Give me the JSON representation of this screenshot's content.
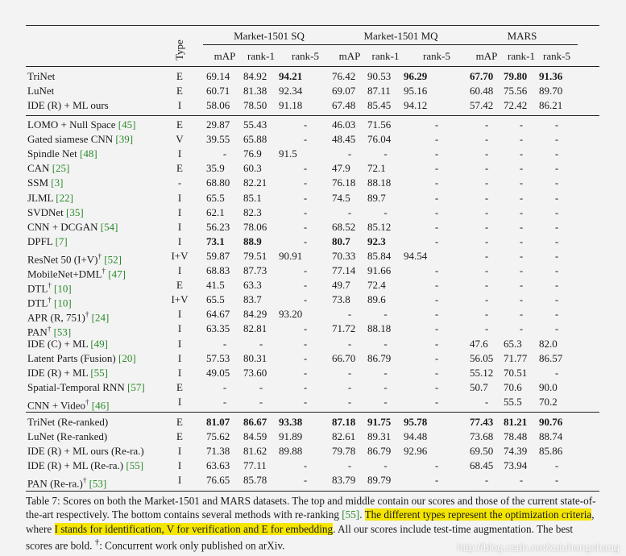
{
  "table": {
    "type_label": "Type",
    "group_headers": [
      "Market-1501 SQ",
      "Market-1501 MQ",
      "MARS"
    ],
    "sub_headers": [
      "mAP",
      "rank-1",
      "rank-5",
      "mAP",
      "rank-1",
      "rank-5",
      "mAP",
      "rank-1",
      "rank-5"
    ],
    "sections": [
      {
        "rows": [
          {
            "method": "TriNet",
            "cite": "",
            "sup": "",
            "type": "E",
            "values": [
              "69.14",
              "84.92",
              "94.21",
              "76.42",
              "90.53",
              "96.29",
              "67.70",
              "79.80",
              "91.36"
            ],
            "bold": [
              2,
              5,
              6,
              7,
              8
            ]
          },
          {
            "method": "LuNet",
            "cite": "",
            "sup": "",
            "type": "E",
            "values": [
              "60.71",
              "81.38",
              "92.34",
              "69.07",
              "87.11",
              "95.16",
              "60.48",
              "75.56",
              "89.70"
            ],
            "bold": []
          },
          {
            "method": "IDE (R) + ML ours",
            "cite": "",
            "sup": "",
            "type": "I",
            "values": [
              "58.06",
              "78.50",
              "91.18",
              "67.48",
              "85.45",
              "94.12",
              "57.42",
              "72.42",
              "86.21"
            ],
            "bold": []
          }
        ]
      },
      {
        "rows": [
          {
            "method": "LOMO + Null Space",
            "cite": "[45]",
            "sup": "",
            "type": "E",
            "values": [
              "29.87",
              "55.43",
              "-",
              "46.03",
              "71.56",
              "-",
              "-",
              "-",
              "-"
            ],
            "bold": []
          },
          {
            "method": "Gated siamese CNN",
            "cite": "[39]",
            "sup": "",
            "type": "V",
            "values": [
              "39.55",
              "65.88",
              "-",
              "48.45",
              "76.04",
              "-",
              "-",
              "-",
              "-"
            ],
            "bold": []
          },
          {
            "method": "Spindle Net",
            "cite": "[48]",
            "sup": "",
            "type": "I",
            "values": [
              "-",
              "76.9",
              "91.5",
              "-",
              "-",
              "-",
              "-",
              "-",
              "-"
            ],
            "bold": []
          },
          {
            "method": "CAN",
            "cite": "[25]",
            "sup": "",
            "type": "E",
            "values": [
              "35.9",
              "60.3",
              "-",
              "47.9",
              "72.1",
              "-",
              "-",
              "-",
              "-"
            ],
            "bold": []
          },
          {
            "method": "SSM",
            "cite": "[3]",
            "sup": "",
            "type": "-",
            "values": [
              "68.80",
              "82.21",
              "-",
              "76.18",
              "88.18",
              "-",
              "-",
              "-",
              "-"
            ],
            "bold": []
          },
          {
            "method": "JLML",
            "cite": "[22]",
            "sup": "",
            "type": "I",
            "values": [
              "65.5",
              "85.1",
              "-",
              "74.5",
              "89.7",
              "-",
              "-",
              "-",
              "-"
            ],
            "bold": []
          },
          {
            "method": "SVDNet",
            "cite": "[35]",
            "sup": "",
            "type": "I",
            "values": [
              "62.1",
              "82.3",
              "-",
              "-",
              "-",
              "-",
              "-",
              "-",
              "-"
            ],
            "bold": []
          },
          {
            "method": "CNN + DCGAN",
            "cite": "[54]",
            "sup": "",
            "type": "I",
            "values": [
              "56.23",
              "78.06",
              "-",
              "68.52",
              "85.12",
              "-",
              "-",
              "-",
              "-"
            ],
            "bold": []
          },
          {
            "method": "DPFL",
            "cite": "[7]",
            "sup": "",
            "type": "I",
            "values": [
              "73.1",
              "88.9",
              "-",
              "80.7",
              "92.3",
              "-",
              "-",
              "-",
              "-"
            ],
            "bold": [
              0,
              1,
              3,
              4
            ]
          },
          {
            "method": "ResNet 50 (I+V)",
            "cite": "[52]",
            "sup": "†",
            "type": "I+V",
            "values": [
              "59.87",
              "79.51",
              "90.91",
              "70.33",
              "85.84",
              "94.54",
              "-",
              "-",
              "-"
            ],
            "bold": []
          },
          {
            "method": "MobileNet+DML",
            "cite": "[47]",
            "sup": "†",
            "type": "I",
            "values": [
              "68.83",
              "87.73",
              "-",
              "77.14",
              "91.66",
              "-",
              "-",
              "-",
              "-"
            ],
            "bold": []
          },
          {
            "method": "DTL",
            "cite": "[10]",
            "sup": "†",
            "type": "E",
            "values": [
              "41.5",
              "63.3",
              "-",
              "49.7",
              "72.4",
              "-",
              "-",
              "-",
              "-"
            ],
            "bold": []
          },
          {
            "method": "DTL",
            "cite": "[10]",
            "sup": "†",
            "type": "I+V",
            "values": [
              "65.5",
              "83.7",
              "-",
              "73.8",
              "89.6",
              "-",
              "-",
              "-",
              "-"
            ],
            "bold": []
          },
          {
            "method": "APR (R, 751)",
            "cite": "[24]",
            "sup": "†",
            "type": "I",
            "values": [
              "64.67",
              "84.29",
              "93.20",
              "-",
              "-",
              "-",
              "-",
              "-",
              "-"
            ],
            "bold": []
          },
          {
            "method": "PAN",
            "cite": "[53]",
            "sup": "†",
            "type": "I",
            "values": [
              "63.35",
              "82.81",
              "-",
              "71.72",
              "88.18",
              "-",
              "-",
              "-",
              "-"
            ],
            "bold": []
          },
          {
            "method": "IDE (C) + ML",
            "cite": "[49]",
            "sup": "",
            "type": "I",
            "values": [
              "-",
              "-",
              "-",
              "-",
              "-",
              "-",
              "47.6",
              "65.3",
              "82.0"
            ],
            "bold": []
          },
          {
            "method": "Latent Parts (Fusion)",
            "cite": "[20]",
            "sup": "",
            "type": "I",
            "values": [
              "57.53",
              "80.31",
              "-",
              "66.70",
              "86.79",
              "-",
              "56.05",
              "71.77",
              "86.57"
            ],
            "bold": []
          },
          {
            "method": "IDE (R) + ML",
            "cite": "[55]",
            "sup": "",
            "type": "I",
            "values": [
              "49.05",
              "73.60",
              "-",
              "-",
              "-",
              "-",
              "55.12",
              "70.51",
              "-"
            ],
            "bold": []
          },
          {
            "method": "Spatial-Temporal RNN",
            "cite": "[57]",
            "sup": "",
            "type": "E",
            "values": [
              "-",
              "-",
              "-",
              "-",
              "-",
              "-",
              "50.7",
              "70.6",
              "90.0"
            ],
            "bold": []
          },
          {
            "method": "CNN + Video",
            "cite": "[46]",
            "sup": "†",
            "type": "I",
            "values": [
              "-",
              "-",
              "-",
              "-",
              "-",
              "-",
              "-",
              "55.5",
              "70.2"
            ],
            "bold": []
          }
        ]
      },
      {
        "rows": [
          {
            "method": "TriNet (Re-ranked)",
            "cite": "",
            "sup": "",
            "type": "E",
            "values": [
              "81.07",
              "86.67",
              "93.38",
              "87.18",
              "91.75",
              "95.78",
              "77.43",
              "81.21",
              "90.76"
            ],
            "bold": [
              0,
              1,
              2,
              3,
              4,
              5,
              6,
              7,
              8
            ]
          },
          {
            "method": "LuNet (Re-ranked)",
            "cite": "",
            "sup": "",
            "type": "E",
            "values": [
              "75.62",
              "84.59",
              "91.89",
              "82.61",
              "89.31",
              "94.48",
              "73.68",
              "78.48",
              "88.74"
            ],
            "bold": []
          },
          {
            "method": "IDE (R) + ML ours (Re-ra.)",
            "cite": "",
            "sup": "",
            "type": "I",
            "values": [
              "71.38",
              "81.62",
              "89.88",
              "79.78",
              "86.79",
              "92.96",
              "69.50",
              "74.39",
              "85.86"
            ],
            "bold": []
          },
          {
            "method": "IDE (R) + ML (Re-ra.)",
            "cite": "[55]",
            "sup": "",
            "type": "I",
            "values": [
              "63.63",
              "77.11",
              "-",
              "-",
              "-",
              "-",
              "68.45",
              "73.94",
              "-"
            ],
            "bold": []
          },
          {
            "method": "PAN (Re-ra.)",
            "cite": "[53]",
            "sup": "†",
            "type": "I",
            "values": [
              "76.65",
              "85.78",
              "-",
              "83.79",
              "89.79",
              "-",
              "-",
              "-",
              "-"
            ],
            "bold": []
          }
        ]
      }
    ]
  },
  "caption": {
    "part1": "Table 7: Scores on both the Market-1501 and MARS datasets. The top and middle contain our scores and those of the current state-of-the-art respectively. The bottom contains several methods with re-ranking ",
    "cite": "[55]",
    "part2": ". ",
    "hl1": "The different types represent the optimization criteria",
    "part3": ", where ",
    "hl2": "I stands for identification, V for verification and E for embedding",
    "part4": ". All our scores include test-time augmentation. The best scores are bold. ",
    "dagger": "†",
    "part5": ": Concurrent work only published on arXiv."
  },
  "watermark": "http://blog.csdn.net/xuluhongshang"
}
